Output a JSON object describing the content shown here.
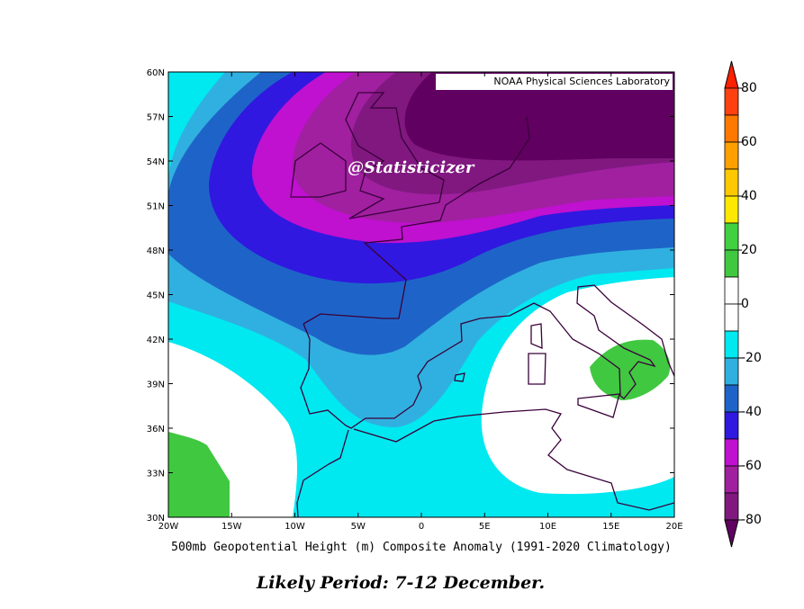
{
  "map": {
    "credit": "NOAA Physical Sciences Laboratory",
    "watermark": "@Statisticizer",
    "lat_labels": [
      "60N",
      "57N",
      "54N",
      "51N",
      "48N",
      "45N",
      "42N",
      "39N",
      "36N",
      "33N",
      "30N"
    ],
    "lon_labels": [
      "20W",
      "15W",
      "10W",
      "5W",
      "0",
      "5E",
      "10E",
      "15E",
      "20E"
    ],
    "caption": "500mb Geopotential Height (m) Composite Anomaly (1991-2020 Climatology)"
  },
  "colorbar": {
    "ticks": [
      80,
      60,
      40,
      20,
      0,
      -20,
      -40,
      -60,
      -80
    ],
    "colors": [
      "#ff2000",
      "#ff4010",
      "#ff7800",
      "#ffa000",
      "#ffc800",
      "#ffe800",
      "#40d040",
      "#40c840",
      "#ffffff",
      "#ffffff",
      "#00e8f0",
      "#30b0e0",
      "#1e64c8",
      "#3018e0",
      "#c010d0",
      "#a020a0",
      "#801880",
      "#600060"
    ]
  },
  "footer": {
    "text": "Likely Period: 7-12 December."
  }
}
